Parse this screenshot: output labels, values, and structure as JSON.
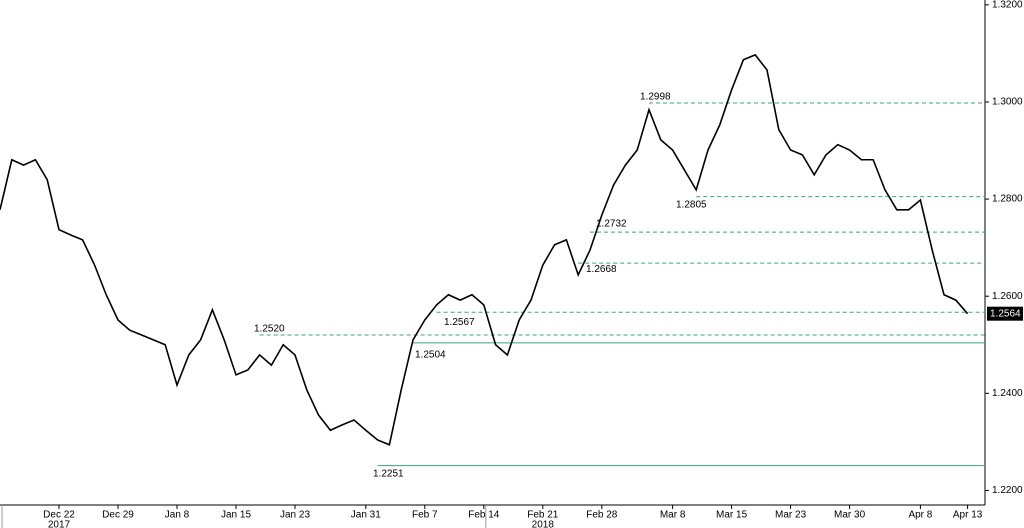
{
  "chart_data": {
    "type": "line",
    "categories": [
      null,
      null,
      null,
      null,
      null,
      "Dec 22",
      null,
      null,
      null,
      null,
      "Dec 29",
      null,
      null,
      null,
      null,
      "Jan 8",
      null,
      null,
      null,
      null,
      "Jan 15",
      null,
      null,
      null,
      null,
      "Jan 23",
      null,
      null,
      null,
      null,
      null,
      "Jan 31",
      null,
      null,
      null,
      null,
      "Feb 7",
      null,
      null,
      null,
      null,
      "Feb 14",
      null,
      null,
      null,
      null,
      "Feb 21",
      null,
      null,
      null,
      null,
      "Feb 28",
      null,
      null,
      null,
      null,
      null,
      "Mar 8",
      null,
      null,
      null,
      null,
      "Mar 15",
      null,
      null,
      null,
      null,
      "Mar 23",
      null,
      null,
      null,
      null,
      "Mar 30",
      null,
      null,
      null,
      null,
      null,
      "Apr 8",
      null,
      null,
      null,
      "Apr 13"
    ],
    "years": [
      null,
      null,
      null,
      null,
      null,
      "2017",
      null,
      null,
      null,
      null,
      null,
      null,
      null,
      null,
      null,
      null,
      null,
      null,
      null,
      null,
      null,
      null,
      null,
      null,
      null,
      null,
      null,
      null,
      null,
      null,
      null,
      null,
      null,
      null,
      null,
      null,
      null,
      null,
      null,
      null,
      null,
      null,
      null,
      null,
      null,
      null,
      "2018",
      null,
      null,
      null,
      null,
      null,
      null,
      null,
      null,
      null,
      null,
      null,
      null,
      null,
      null,
      null,
      null,
      null,
      null,
      null,
      null,
      null,
      null,
      null,
      null,
      null,
      null,
      null,
      null,
      null,
      null,
      null,
      null,
      null,
      null,
      null,
      null
    ],
    "series": [
      {
        "color": "#000000",
        "values": [
          1.2778,
          1.2881,
          1.287,
          1.2881,
          1.284,
          1.2737,
          1.2726,
          1.2716,
          1.2665,
          1.2603,
          1.2551,
          1.253,
          1.252,
          1.251,
          1.25,
          1.2417,
          1.2479,
          1.251,
          1.2572,
          1.251,
          1.2438,
          1.2448,
          1.2479,
          1.2458,
          1.25,
          1.2479,
          1.2407,
          1.2355,
          1.2324,
          1.2335,
          1.2345,
          1.2324,
          1.2304,
          1.2294,
          1.2407,
          1.251,
          1.2551,
          1.2582,
          1.2603,
          1.2592,
          1.2603,
          1.2582,
          1.25,
          1.2479,
          1.2551,
          1.2592,
          1.2664,
          1.2706,
          1.2716,
          1.2644,
          1.2695,
          1.2767,
          1.2829,
          1.287,
          1.2901,
          1.2984,
          1.2922,
          1.2901,
          1.286,
          1.2819,
          1.2901,
          1.2953,
          1.3025,
          1.3087,
          1.3097,
          1.3066,
          1.2943,
          1.2901,
          1.2891,
          1.285,
          1.2891,
          1.2912,
          1.2901,
          1.2881,
          1.2881,
          1.2819,
          1.2778,
          1.2778,
          1.2798,
          1.2695,
          1.2603,
          1.2592,
          1.2564
        ]
      }
    ],
    "levels": [
      {
        "value": 1.2998,
        "label": "1.2998",
        "style": "dashed"
      },
      {
        "value": 1.2805,
        "label": "1.2805",
        "style": "dashed"
      },
      {
        "value": 1.2732,
        "label": "1.2732",
        "style": "dashed"
      },
      {
        "value": 1.2668,
        "label": "1.2668",
        "style": "dashed"
      },
      {
        "value": 1.2567,
        "label": "1.2567",
        "style": "dashed"
      },
      {
        "value": 1.252,
        "label": "1.2520",
        "style": "dashed"
      },
      {
        "value": 1.2504,
        "label": "1.2504",
        "style": "solid"
      },
      {
        "value": 1.2251,
        "label": "1.2251",
        "style": "solid"
      }
    ],
    "last": {
      "value": 1.2564,
      "label": "1.2564"
    },
    "level_color": "#3aa876",
    "ylim": [
      1.217,
      1.321
    ],
    "yticks": [
      {
        "value": 1.22,
        "label": "1.2200"
      },
      {
        "value": 1.24,
        "label": "1.2400"
      },
      {
        "value": 1.26,
        "label": "1.2600"
      },
      {
        "value": 1.28,
        "label": "1.2800"
      },
      {
        "value": 1.3,
        "label": "1.3000"
      },
      {
        "value": 1.32,
        "label": "1.3200"
      }
    ]
  }
}
